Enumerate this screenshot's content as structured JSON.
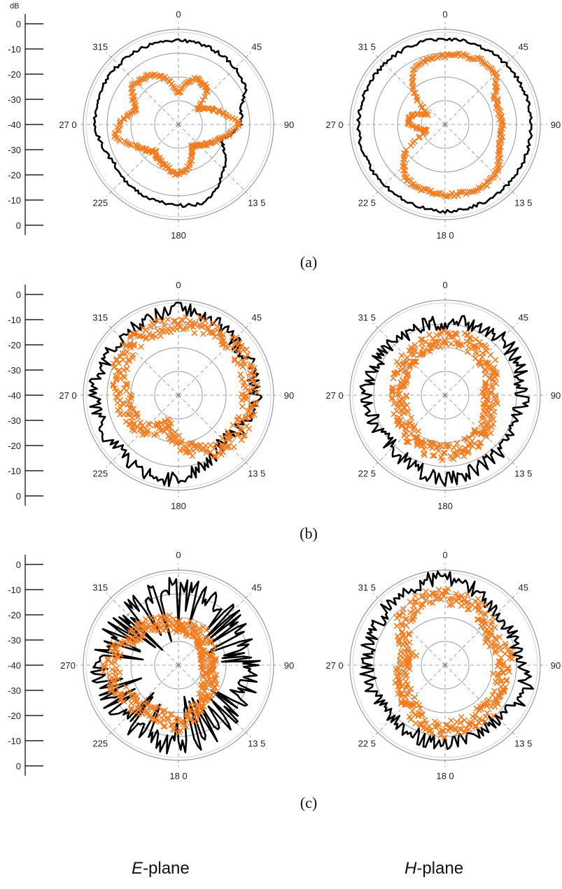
{
  "figure": {
    "unit_label": "dB",
    "panel_captions": [
      "(a)",
      "(b)",
      "(c)"
    ],
    "column_titles": [
      {
        "italic": "E",
        "rest": "-plane"
      },
      {
        "italic": "H",
        "rest": "-plane"
      }
    ]
  },
  "colors": {
    "envelope_trace": "#000000",
    "marker_trace": "#f57c1f",
    "grid": "#9a9a9a"
  },
  "chart_data": [
    {
      "id": "a-E",
      "type": "polar",
      "panel": "(a)",
      "plane": "E",
      "radial_axis": {
        "labels": [
          "0",
          "-10",
          "-20",
          "-30",
          "-40",
          "-30",
          "-20",
          "-10",
          "0"
        ],
        "range_db": [
          -40,
          0
        ],
        "rings_db": [
          -30,
          -20,
          -10,
          0
        ]
      },
      "angular_labels": {
        "0": "0",
        "45": "45",
        "90": "90",
        "135": "13 5",
        "180": "180",
        "225": "225",
        "270": "27 0",
        "315": "315"
      },
      "series": [
        {
          "style": "line",
          "shape": "smooth",
          "seed": 3,
          "angles_deg": [
            0,
            30,
            60,
            75,
            90,
            110,
            135,
            160,
            180,
            210,
            240,
            270,
            300,
            330
          ],
          "values_db": [
            -4.5,
            -5.5,
            -7.5,
            -13,
            -14,
            -21,
            -13,
            -5.5,
            -6,
            -7,
            -8.5,
            -5,
            -4.5,
            -4.5
          ]
        },
        {
          "style": "markers",
          "shape": "smooth",
          "seed": 4,
          "angles_deg": [
            0,
            20,
            40,
            50,
            70,
            90,
            110,
            135,
            150,
            165,
            180,
            200,
            220,
            240,
            260,
            270,
            290,
            310,
            330,
            345
          ],
          "values_db": [
            -27,
            -19,
            -21,
            -30,
            -23,
            -14,
            -22,
            -28,
            -29,
            -22,
            -19,
            -22,
            -25,
            -21,
            -13,
            -15,
            -21,
            -15,
            -16,
            -20
          ]
        }
      ]
    },
    {
      "id": "a-H",
      "type": "polar",
      "panel": "(a)",
      "plane": "H",
      "radial_axis": {
        "labels": [],
        "range_db": [
          -40,
          0
        ],
        "rings_db": [
          -30,
          -20,
          -10,
          0
        ]
      },
      "angular_labels": {
        "0": "0",
        "45": "45",
        "90": "90",
        "135": "13 5",
        "180": "18 0",
        "225": "22 5",
        "270": "27 0",
        "315": "31 5"
      },
      "series": [
        {
          "style": "line",
          "shape": "smooth",
          "seed": 5,
          "angles_deg": [
            0,
            45,
            90,
            135,
            180,
            225,
            270,
            315
          ],
          "values_db": [
            -4,
            -4,
            -4,
            -3.5,
            -3.5,
            -4,
            -3.5,
            -4
          ]
        },
        {
          "style": "markers",
          "shape": "smooth",
          "seed": 6,
          "angles_deg": [
            0,
            15,
            30,
            45,
            60,
            75,
            90,
            110,
            130,
            145,
            160,
            180,
            200,
            215,
            235,
            245,
            255,
            270,
            285,
            300,
            315,
            330,
            345
          ],
          "values_db": [
            -11,
            -10,
            -9,
            -10,
            -16,
            -17,
            -16,
            -16,
            -11,
            -9.5,
            -10,
            -10.5,
            -11,
            -12,
            -19,
            -29,
            -32,
            -25,
            -25,
            -32,
            -22,
            -13,
            -11.5
          ]
        }
      ]
    },
    {
      "id": "b-E",
      "type": "polar",
      "panel": "(b)",
      "plane": "E",
      "radial_axis": {
        "labels": [
          "0",
          "-10",
          "-20",
          "-30",
          "-40",
          "-30",
          "-20",
          "-10",
          "0"
        ],
        "range_db": [
          -40,
          0
        ],
        "rings_db": [
          -30,
          -20,
          -10,
          0
        ]
      },
      "angular_labels": {
        "0": "0",
        "45": "45",
        "90": "90",
        "135": "13 5",
        "180": "180",
        "225": "225",
        "270": "27 0",
        "315": "315"
      },
      "series": [
        {
          "style": "line",
          "shape": "noisy",
          "seed": 7,
          "angles_deg": [
            0,
            45,
            90,
            110,
            135,
            150,
            180,
            225,
            270,
            315
          ],
          "values_db": [
            -4,
            -7.5,
            -7,
            -9,
            -13,
            -11,
            -4.5,
            -6,
            -5,
            -6.5
          ]
        },
        {
          "style": "markers",
          "shape": "noisy",
          "seed": 8,
          "angles_deg": [
            0,
            45,
            90,
            135,
            160,
            180,
            200,
            225,
            250,
            270,
            300,
            330
          ],
          "values_db": [
            -10,
            -8.5,
            -10,
            -11,
            -15,
            -20,
            -27,
            -20,
            -17,
            -17,
            -12,
            -11
          ]
        }
      ]
    },
    {
      "id": "b-H",
      "type": "polar",
      "panel": "(b)",
      "plane": "H",
      "radial_axis": {
        "labels": [],
        "range_db": [
          -40,
          0
        ],
        "rings_db": [
          -30,
          -20,
          -10,
          0
        ]
      },
      "angular_labels": {
        "0": "0",
        "45": "45",
        "90": "90",
        "135": "13 5",
        "180": "180",
        "225": "22 5",
        "270": "27 0",
        "315": "31 5"
      },
      "series": [
        {
          "style": "line",
          "shape": "noisy",
          "seed": 9,
          "angles_deg": [
            0,
            45,
            90,
            135,
            180,
            225,
            270,
            315
          ],
          "values_db": [
            -10,
            -6,
            -8,
            -7,
            -5,
            -9,
            -7,
            -9
          ]
        },
        {
          "style": "markers",
          "shape": "noisy",
          "seed": 10,
          "angles_deg": [
            0,
            30,
            60,
            90,
            120,
            150,
            180,
            210,
            240,
            270,
            300,
            330
          ],
          "values_db": [
            -16,
            -16,
            -18,
            -22,
            -19,
            -17,
            -16,
            -17,
            -20,
            -21,
            -19,
            -18
          ]
        }
      ]
    },
    {
      "id": "c-E",
      "type": "polar",
      "panel": "(c)",
      "plane": "E",
      "radial_axis": {
        "labels": [
          "0",
          "-10",
          "-20",
          "-30",
          "-40",
          "-30",
          "-20",
          "-10",
          "0"
        ],
        "range_db": [
          -40,
          0
        ],
        "rings_db": [
          -30,
          -20,
          -10,
          0
        ]
      },
      "angular_labels": {
        "0": "0",
        "45": "45",
        "90": "90",
        "135": "13 5",
        "180": "18 0",
        "225": "225",
        "270": "270",
        "315": "315"
      },
      "series": [
        {
          "style": "line",
          "shape": "spiky",
          "seed": 11,
          "angles_deg": [
            0,
            45,
            90,
            135,
            180,
            225,
            270,
            315
          ],
          "values_db": [
            -7,
            -10,
            -9,
            -10,
            -6,
            -9,
            -7,
            -10
          ]
        },
        {
          "style": "markers",
          "shape": "noisy",
          "seed": 12,
          "angles_deg": [
            0,
            30,
            60,
            90,
            120,
            150,
            180,
            210,
            240,
            270,
            300,
            330
          ],
          "values_db": [
            -23,
            -24,
            -26,
            -28,
            -25,
            -22,
            -15,
            -18,
            -14,
            -11,
            -17,
            -20
          ]
        }
      ]
    },
    {
      "id": "c-H",
      "type": "polar",
      "panel": "(c)",
      "plane": "H",
      "radial_axis": {
        "labels": [],
        "range_db": [
          -40,
          0
        ],
        "rings_db": [
          -30,
          -20,
          -10,
          0
        ]
      },
      "angular_labels": {
        "0": "0",
        "45": "45",
        "90": "90",
        "135": "13 5",
        "180": "18 0",
        "225": "22 5",
        "270": "27 0",
        "315": "31 5"
      },
      "series": [
        {
          "style": "line",
          "shape": "noisy",
          "seed": 13,
          "angles_deg": [
            0,
            45,
            90,
            110,
            135,
            180,
            225,
            270,
            315
          ],
          "values_db": [
            -3,
            -9,
            -9,
            -3,
            -9,
            -7,
            -9,
            -7,
            -6
          ]
        },
        {
          "style": "markers",
          "shape": "noisy",
          "seed": 14,
          "angles_deg": [
            0,
            30,
            60,
            80,
            100,
            130,
            160,
            180,
            210,
            230,
            260,
            290,
            315,
            335
          ],
          "values_db": [
            -11,
            -12,
            -18,
            -14,
            -17,
            -14,
            -14,
            -13,
            -16,
            -19,
            -21,
            -24,
            -15,
            -11
          ]
        }
      ]
    }
  ]
}
